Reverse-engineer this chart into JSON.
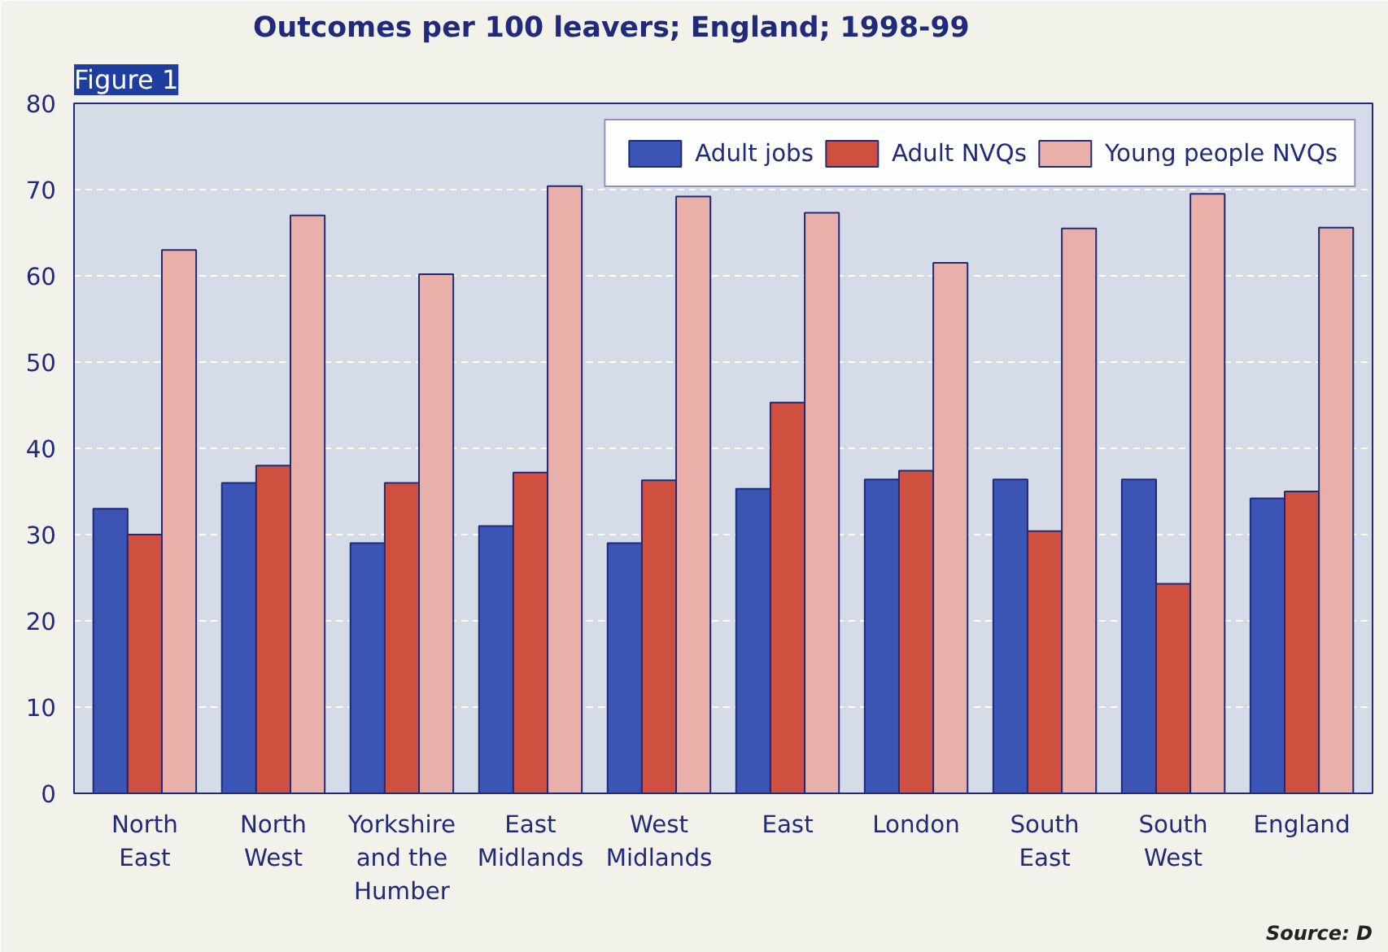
{
  "chart_data": {
    "type": "bar",
    "title": "Outcomes per 100 leavers; England; 1998-99",
    "categories": [
      "North East",
      "North West",
      "Yorkshire and the Humber",
      "East Midlands",
      "West Midlands",
      "East",
      "London",
      "South East",
      "South West",
      "England"
    ],
    "series": [
      {
        "name": "Adult jobs",
        "color": "#3a55b4",
        "values": [
          33,
          36,
          29,
          31,
          29,
          35.3,
          36.4,
          36.4,
          36.4,
          34.2
        ]
      },
      {
        "name": "Adult NVQs",
        "color": "#d0503f",
        "values": [
          30,
          38,
          36,
          37.2,
          36.3,
          45.3,
          37.4,
          30.4,
          24.3,
          35
        ]
      },
      {
        "name": "Young people NVQs",
        "color": "#e8b0a8",
        "values": [
          63,
          67,
          60.2,
          70.4,
          69.2,
          67.3,
          61.5,
          65.5,
          69.5,
          65.6
        ]
      }
    ],
    "ylim": [
      0,
      80
    ],
    "yticks": [
      0,
      10,
      20,
      30,
      40,
      50,
      60,
      70,
      80
    ],
    "grid": "y",
    "legend": "top right",
    "annotations": [
      "Figure 1",
      "Source: D"
    ]
  }
}
